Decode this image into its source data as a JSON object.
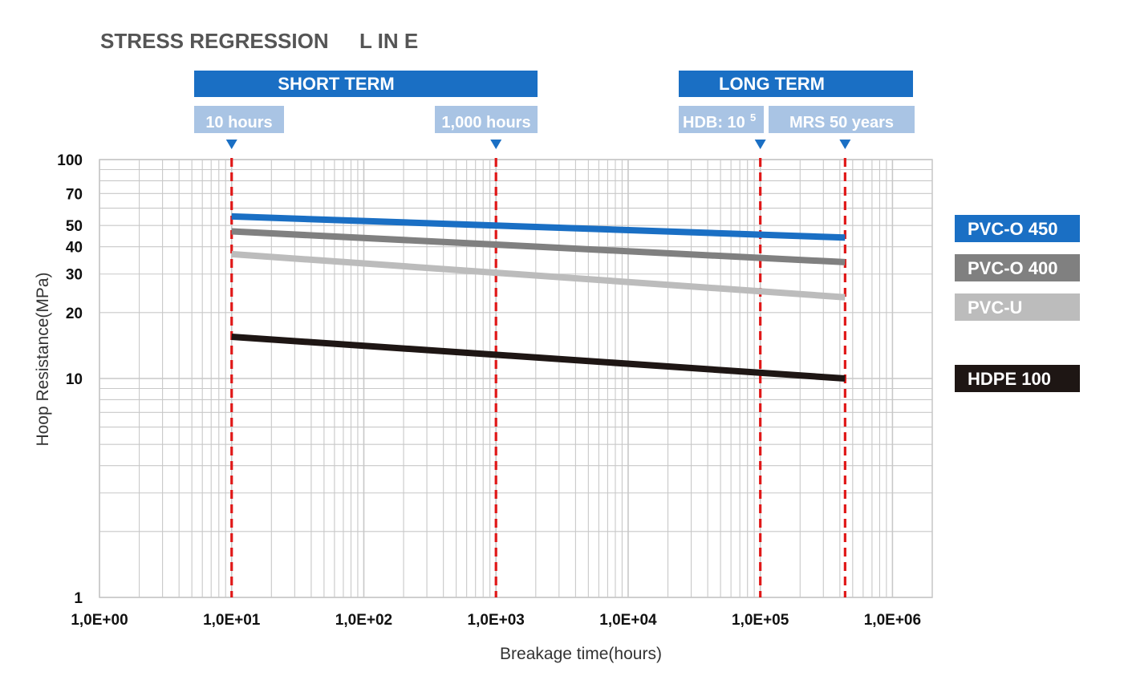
{
  "title": {
    "text": "STRESS REGRESSION",
    "suffix": "L IN E"
  },
  "phases": [
    {
      "label": "SHORT TERM",
      "color": "#1a6fc4"
    },
    {
      "label": "LONG TERM",
      "color": "#1a6fc4"
    }
  ],
  "markers": [
    {
      "label": "10 hours",
      "x": 10
    },
    {
      "label": "1,000 hours",
      "x": 1000
    },
    {
      "label": "HDB: 10",
      "superscript": "5",
      "x": 100000
    },
    {
      "label": "MRS 50 years",
      "x": 438000
    }
  ],
  "colors": {
    "marker_box": "#a9c4e4",
    "marker_triangle": "#1a6fc4",
    "marker_line": "#e01818",
    "grid": "#c8c8c8"
  },
  "chart_data": {
    "type": "line",
    "xscale": "log",
    "yscale": "log",
    "xlim": [
      1,
      2000000
    ],
    "ylim": [
      1,
      100
    ],
    "xlabel": "Breakage time(hours)",
    "ylabel": "Hoop Resistance(MPa)",
    "x_tick_labels": [
      "1,0E+00",
      "1,0E+01",
      "1,0E+02",
      "1,0E+03",
      "1,0E+04",
      "1,0E+05",
      "1,0E+06"
    ],
    "x_tick_values": [
      1,
      10,
      100,
      1000,
      10000,
      100000,
      1000000
    ],
    "y_tick_labels": [
      "100",
      "70",
      "50",
      "40",
      "30",
      "20",
      "10",
      "1"
    ],
    "y_tick_values": [
      100,
      70,
      50,
      40,
      30,
      20,
      10,
      1
    ],
    "grid": true,
    "legend_position": "right",
    "series": [
      {
        "name": "PVC-O 450",
        "color": "#1a6fc4",
        "x": [
          10,
          438000
        ],
        "y": [
          55,
          44
        ]
      },
      {
        "name": "PVC-O 400",
        "color": "#808080",
        "x": [
          10,
          438000
        ],
        "y": [
          47,
          34
        ]
      },
      {
        "name": "PVC-U",
        "color": "#bcbcbc",
        "x": [
          10,
          438000
        ],
        "y": [
          37,
          23.5
        ]
      },
      {
        "name": "HDPE 100",
        "color": "#1e1614",
        "x": [
          10,
          438000
        ],
        "y": [
          15.5,
          10
        ]
      }
    ]
  }
}
